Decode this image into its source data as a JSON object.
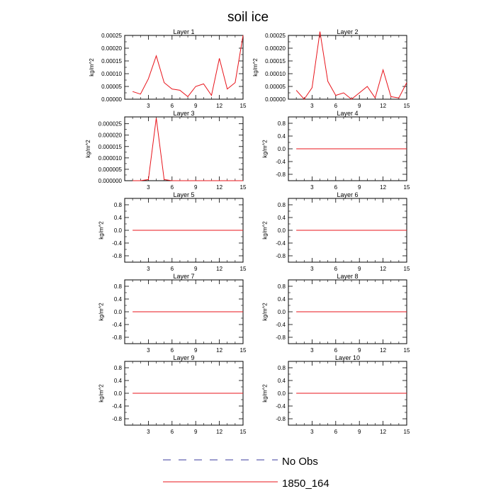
{
  "figure": {
    "title": "soil ice",
    "legend": [
      {
        "label": "No Obs",
        "style": "dashed",
        "color": "#3b3b9e"
      },
      {
        "label": "1850_164",
        "style": "solid",
        "color": "#e8141b"
      }
    ]
  },
  "colors": {
    "series": "#e8141b",
    "axis": "#000000"
  },
  "chart_data": [
    {
      "type": "line",
      "title": "Layer 1",
      "xlabel": "",
      "ylabel": "kg/m^2",
      "xlim": [
        0,
        15
      ],
      "ylim": [
        0,
        0.00025
      ],
      "xticks": [
        3,
        6,
        9,
        12,
        15
      ],
      "xticklabels": [
        "3",
        "6",
        "9",
        "12",
        "15"
      ],
      "yticks": [
        0,
        5e-05,
        0.0001,
        0.00015,
        0.0002,
        0.00025
      ],
      "yticklabels": [
        "0.00000",
        "0.00005",
        "0.00010",
        "0.00015",
        "0.00020",
        "0.00025"
      ],
      "series": [
        {
          "name": "1850_164",
          "x": [
            1,
            2,
            3,
            4,
            5,
            6,
            7,
            8,
            9,
            10,
            11,
            12,
            13,
            14,
            15
          ],
          "y": [
            3e-05,
            2e-05,
            8e-05,
            0.00017,
            6.5e-05,
            4e-05,
            3.5e-05,
            1e-05,
            5e-05,
            6e-05,
            1.5e-05,
            0.00016,
            4e-05,
            6.5e-05,
            0.00025
          ]
        }
      ]
    },
    {
      "type": "line",
      "title": "Layer 2",
      "xlabel": "",
      "ylabel": "",
      "xlim": [
        0,
        15
      ],
      "ylim": [
        0,
        0.00025
      ],
      "xticks": [
        3,
        6,
        9,
        12,
        15
      ],
      "xticklabels": [
        "3",
        "6",
        "9",
        "12",
        "15"
      ],
      "yticks": [
        0,
        5e-05,
        0.0001,
        0.00015,
        0.0002,
        0.00025
      ],
      "yticklabels": [
        "0.00000",
        "0.00005",
        "0.00010",
        "0.00015",
        "0.00020",
        "0.00025"
      ],
      "series": [
        {
          "name": "1850_164",
          "x": [
            1,
            2,
            3,
            4,
            5,
            6,
            7,
            8,
            9,
            10,
            11,
            12,
            13,
            14,
            15
          ],
          "y": [
            3.5e-05,
            0,
            4.5e-05,
            0.000265,
            7e-05,
            1.5e-05,
            2.5e-05,
            0,
            2.5e-05,
            5e-05,
            5e-06,
            0.000115,
            1e-05,
            5e-06,
            6.5e-05
          ]
        }
      ]
    },
    {
      "type": "line",
      "title": "Layer 3",
      "xlabel": "",
      "ylabel": "kg/m^2",
      "xlim": [
        0,
        15
      ],
      "ylim": [
        0,
        2.8e-05
      ],
      "xticks": [
        3,
        6,
        9,
        12,
        15
      ],
      "xticklabels": [
        "3",
        "6",
        "9",
        "12",
        "15"
      ],
      "yticks": [
        0,
        5e-06,
        1e-05,
        1.5e-05,
        2e-05,
        2.5e-05
      ],
      "yticklabels": [
        "0.000000",
        "0.000005",
        "0.000010",
        "0.000015",
        "0.000020",
        "0.000025"
      ],
      "series": [
        {
          "name": "1850_164",
          "x": [
            1,
            2,
            3,
            4,
            5,
            6,
            7,
            8,
            9,
            10,
            11,
            12,
            13,
            14,
            15
          ],
          "y": [
            0,
            0,
            5e-07,
            2.75e-05,
            5e-07,
            0,
            0,
            0,
            0,
            0,
            0,
            0,
            0,
            0,
            0
          ]
        }
      ]
    },
    {
      "type": "line",
      "title": "Layer 4",
      "xlabel": "",
      "ylabel": "kg/m^2",
      "xlim": [
        0,
        15
      ],
      "ylim": [
        -1,
        1
      ],
      "xticks": [
        3,
        6,
        9,
        12,
        15
      ],
      "xticklabels": [
        "3",
        "6",
        "9",
        "12",
        "15"
      ],
      "yticks": [
        -0.8,
        -0.4,
        0,
        0.4,
        0.8
      ],
      "yticklabels": [
        "-0.8",
        "-0.4",
        "0.0",
        "0.4",
        "0.8"
      ],
      "series": [
        {
          "name": "1850_164",
          "x": [
            1,
            15
          ],
          "y": [
            0,
            0
          ]
        }
      ]
    },
    {
      "type": "line",
      "title": "Layer 5",
      "xlabel": "",
      "ylabel": "kg/m^2",
      "xlim": [
        0,
        15
      ],
      "ylim": [
        -1,
        1
      ],
      "xticks": [
        3,
        6,
        9,
        12,
        15
      ],
      "xticklabels": [
        "3",
        "6",
        "9",
        "12",
        "15"
      ],
      "yticks": [
        -0.8,
        -0.4,
        0,
        0.4,
        0.8
      ],
      "yticklabels": [
        "-0.8",
        "-0.4",
        "0.0",
        "0.4",
        "0.8"
      ],
      "series": [
        {
          "name": "1850_164",
          "x": [
            1,
            15
          ],
          "y": [
            0,
            0
          ]
        }
      ]
    },
    {
      "type": "line",
      "title": "Layer 6",
      "xlabel": "",
      "ylabel": "kg/m^2",
      "xlim": [
        0,
        15
      ],
      "ylim": [
        -1,
        1
      ],
      "xticks": [
        3,
        6,
        9,
        12,
        15
      ],
      "xticklabels": [
        "3",
        "6",
        "9",
        "12",
        "15"
      ],
      "yticks": [
        -0.8,
        -0.4,
        0,
        0.4,
        0.8
      ],
      "yticklabels": [
        "-0.8",
        "-0.4",
        "0.0",
        "0.4",
        "0.8"
      ],
      "series": [
        {
          "name": "1850_164",
          "x": [
            1,
            15
          ],
          "y": [
            0,
            0
          ]
        }
      ]
    },
    {
      "type": "line",
      "title": "Layer 7",
      "xlabel": "",
      "ylabel": "kg/m^2",
      "xlim": [
        0,
        15
      ],
      "ylim": [
        -1,
        1
      ],
      "xticks": [
        3,
        6,
        9,
        12,
        15
      ],
      "xticklabels": [
        "3",
        "6",
        "9",
        "12",
        "15"
      ],
      "yticks": [
        -0.8,
        -0.4,
        0,
        0.4,
        0.8
      ],
      "yticklabels": [
        "-0.8",
        "-0.4",
        "0.0",
        "0.4",
        "0.8"
      ],
      "series": [
        {
          "name": "1850_164",
          "x": [
            1,
            15
          ],
          "y": [
            0,
            0
          ]
        }
      ]
    },
    {
      "type": "line",
      "title": "Layer 8",
      "xlabel": "",
      "ylabel": "kg/m^2",
      "xlim": [
        0,
        15
      ],
      "ylim": [
        -1,
        1
      ],
      "xticks": [
        3,
        6,
        9,
        12,
        15
      ],
      "xticklabels": [
        "3",
        "6",
        "9",
        "12",
        "15"
      ],
      "yticks": [
        -0.8,
        -0.4,
        0,
        0.4,
        0.8
      ],
      "yticklabels": [
        "-0.8",
        "-0.4",
        "0.0",
        "0.4",
        "0.8"
      ],
      "series": [
        {
          "name": "1850_164",
          "x": [
            1,
            15
          ],
          "y": [
            0,
            0
          ]
        }
      ]
    },
    {
      "type": "line",
      "title": "Layer 9",
      "xlabel": "",
      "ylabel": "kg/m^2",
      "xlim": [
        0,
        15
      ],
      "ylim": [
        -1,
        1
      ],
      "xticks": [
        3,
        6,
        9,
        12,
        15
      ],
      "xticklabels": [
        "3",
        "6",
        "9",
        "12",
        "15"
      ],
      "yticks": [
        -0.8,
        -0.4,
        0,
        0.4,
        0.8
      ],
      "yticklabels": [
        "-0.8",
        "-0.4",
        "0.0",
        "0.4",
        "0.8"
      ],
      "series": [
        {
          "name": "1850_164",
          "x": [
            1,
            15
          ],
          "y": [
            0,
            0
          ]
        }
      ]
    },
    {
      "type": "line",
      "title": "Layer 10",
      "xlabel": "",
      "ylabel": "kg/m^2",
      "xlim": [
        0,
        15
      ],
      "ylim": [
        -1,
        1
      ],
      "xticks": [
        3,
        6,
        9,
        12,
        15
      ],
      "xticklabels": [
        "3",
        "6",
        "9",
        "12",
        "15"
      ],
      "yticks": [
        -0.8,
        -0.4,
        0,
        0.4,
        0.8
      ],
      "yticklabels": [
        "-0.8",
        "-0.4",
        "0.0",
        "0.4",
        "0.8"
      ],
      "series": [
        {
          "name": "1850_164",
          "x": [
            1,
            15
          ],
          "y": [
            0,
            0
          ]
        }
      ]
    }
  ]
}
